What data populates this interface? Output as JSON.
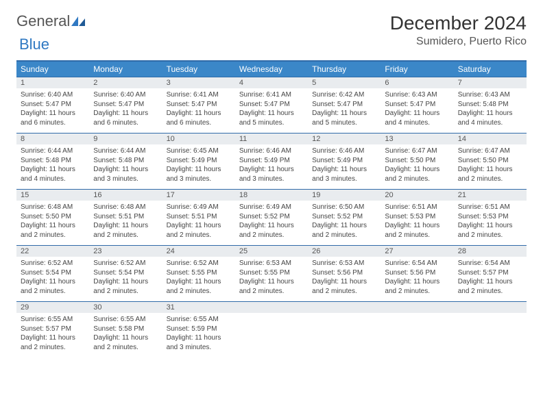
{
  "logo": {
    "w1": "General",
    "w2": "Blue"
  },
  "title": "December 2024",
  "location": "Sumidero, Puerto Rico",
  "colors": {
    "header_bg": "#3b87c8",
    "border": "#2f6aa8",
    "daynum_bg": "#e9ecef"
  },
  "weekdays": [
    "Sunday",
    "Monday",
    "Tuesday",
    "Wednesday",
    "Thursday",
    "Friday",
    "Saturday"
  ],
  "weeks": [
    [
      {
        "n": "1",
        "sr": "6:40 AM",
        "ss": "5:47 PM",
        "dl": "11 hours and 6 minutes."
      },
      {
        "n": "2",
        "sr": "6:40 AM",
        "ss": "5:47 PM",
        "dl": "11 hours and 6 minutes."
      },
      {
        "n": "3",
        "sr": "6:41 AM",
        "ss": "5:47 PM",
        "dl": "11 hours and 6 minutes."
      },
      {
        "n": "4",
        "sr": "6:41 AM",
        "ss": "5:47 PM",
        "dl": "11 hours and 5 minutes."
      },
      {
        "n": "5",
        "sr": "6:42 AM",
        "ss": "5:47 PM",
        "dl": "11 hours and 5 minutes."
      },
      {
        "n": "6",
        "sr": "6:43 AM",
        "ss": "5:47 PM",
        "dl": "11 hours and 4 minutes."
      },
      {
        "n": "7",
        "sr": "6:43 AM",
        "ss": "5:48 PM",
        "dl": "11 hours and 4 minutes."
      }
    ],
    [
      {
        "n": "8",
        "sr": "6:44 AM",
        "ss": "5:48 PM",
        "dl": "11 hours and 4 minutes."
      },
      {
        "n": "9",
        "sr": "6:44 AM",
        "ss": "5:48 PM",
        "dl": "11 hours and 3 minutes."
      },
      {
        "n": "10",
        "sr": "6:45 AM",
        "ss": "5:49 PM",
        "dl": "11 hours and 3 minutes."
      },
      {
        "n": "11",
        "sr": "6:46 AM",
        "ss": "5:49 PM",
        "dl": "11 hours and 3 minutes."
      },
      {
        "n": "12",
        "sr": "6:46 AM",
        "ss": "5:49 PM",
        "dl": "11 hours and 3 minutes."
      },
      {
        "n": "13",
        "sr": "6:47 AM",
        "ss": "5:50 PM",
        "dl": "11 hours and 2 minutes."
      },
      {
        "n": "14",
        "sr": "6:47 AM",
        "ss": "5:50 PM",
        "dl": "11 hours and 2 minutes."
      }
    ],
    [
      {
        "n": "15",
        "sr": "6:48 AM",
        "ss": "5:50 PM",
        "dl": "11 hours and 2 minutes."
      },
      {
        "n": "16",
        "sr": "6:48 AM",
        "ss": "5:51 PM",
        "dl": "11 hours and 2 minutes."
      },
      {
        "n": "17",
        "sr": "6:49 AM",
        "ss": "5:51 PM",
        "dl": "11 hours and 2 minutes."
      },
      {
        "n": "18",
        "sr": "6:49 AM",
        "ss": "5:52 PM",
        "dl": "11 hours and 2 minutes."
      },
      {
        "n": "19",
        "sr": "6:50 AM",
        "ss": "5:52 PM",
        "dl": "11 hours and 2 minutes."
      },
      {
        "n": "20",
        "sr": "6:51 AM",
        "ss": "5:53 PM",
        "dl": "11 hours and 2 minutes."
      },
      {
        "n": "21",
        "sr": "6:51 AM",
        "ss": "5:53 PM",
        "dl": "11 hours and 2 minutes."
      }
    ],
    [
      {
        "n": "22",
        "sr": "6:52 AM",
        "ss": "5:54 PM",
        "dl": "11 hours and 2 minutes."
      },
      {
        "n": "23",
        "sr": "6:52 AM",
        "ss": "5:54 PM",
        "dl": "11 hours and 2 minutes."
      },
      {
        "n": "24",
        "sr": "6:52 AM",
        "ss": "5:55 PM",
        "dl": "11 hours and 2 minutes."
      },
      {
        "n": "25",
        "sr": "6:53 AM",
        "ss": "5:55 PM",
        "dl": "11 hours and 2 minutes."
      },
      {
        "n": "26",
        "sr": "6:53 AM",
        "ss": "5:56 PM",
        "dl": "11 hours and 2 minutes."
      },
      {
        "n": "27",
        "sr": "6:54 AM",
        "ss": "5:56 PM",
        "dl": "11 hours and 2 minutes."
      },
      {
        "n": "28",
        "sr": "6:54 AM",
        "ss": "5:57 PM",
        "dl": "11 hours and 2 minutes."
      }
    ],
    [
      {
        "n": "29",
        "sr": "6:55 AM",
        "ss": "5:57 PM",
        "dl": "11 hours and 2 minutes."
      },
      {
        "n": "30",
        "sr": "6:55 AM",
        "ss": "5:58 PM",
        "dl": "11 hours and 2 minutes."
      },
      {
        "n": "31",
        "sr": "6:55 AM",
        "ss": "5:59 PM",
        "dl": "11 hours and 3 minutes."
      },
      null,
      null,
      null,
      null
    ]
  ],
  "labels": {
    "sunrise": "Sunrise: ",
    "sunset": "Sunset: ",
    "daylight": "Daylight: "
  }
}
